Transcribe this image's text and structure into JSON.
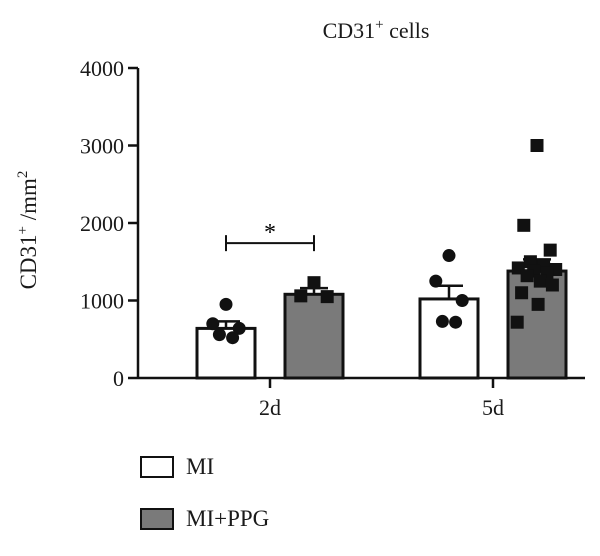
{
  "chart_data": {
    "type": "bar",
    "title": "CD31",
    "title_sup": "+",
    "title_suffix": " cells",
    "ylabel_parts": [
      "CD31",
      "+",
      " /mm",
      "2"
    ],
    "categories": [
      "2d",
      "5d"
    ],
    "ylim": [
      0,
      4000
    ],
    "yticks": [
      0,
      1000,
      2000,
      3000,
      4000
    ],
    "grid": false,
    "legend_position": "bottom-left",
    "series": [
      {
        "name": "MI",
        "color": "#ffffff",
        "marker": "circle",
        "values": [
          640,
          1020
        ],
        "errors": [
          90,
          170
        ],
        "points": [
          [
            950,
            700,
            640,
            560,
            520
          ],
          [
            1580,
            1250,
            1000,
            730,
            720
          ]
        ]
      },
      {
        "name": "MI+PPG",
        "color": "#7a7a7a",
        "marker": "square",
        "values": [
          1080,
          1380
        ],
        "errors": [
          80,
          150
        ],
        "points": [
          [
            1230,
            1060,
            1050
          ],
          [
            3000,
            1970,
            1650,
            1500,
            1440,
            1420,
            1400,
            1380,
            1350,
            1320,
            1250,
            1200,
            1100,
            950,
            720
          ]
        ]
      }
    ],
    "annotations": [
      {
        "text": "*",
        "category": "2d",
        "bracket_value": 1740,
        "text_value": 1960
      }
    ]
  }
}
